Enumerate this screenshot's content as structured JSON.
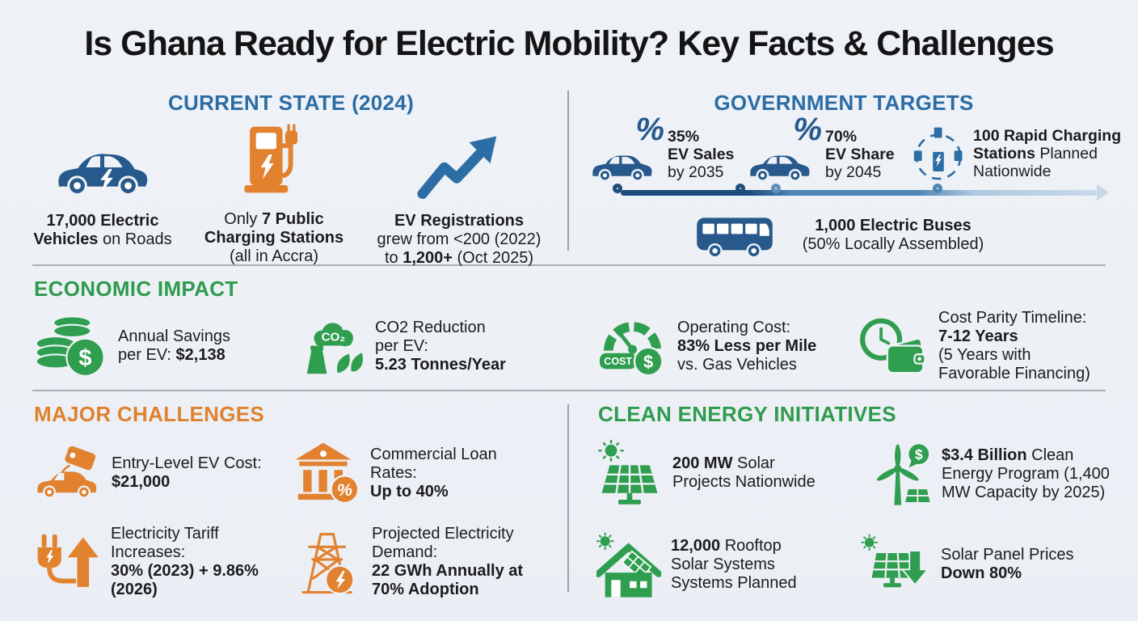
{
  "title": "Is Ghana Ready for Electric Mobility? Key Facts & Challenges",
  "colors": {
    "background": "#eef2f7",
    "heading_blue": "#2b6ca5",
    "heading_green": "#2f9b4d",
    "heading_orange": "#e0812f",
    "icon_navy": "#27598c",
    "icon_orange": "#e2812e",
    "icon_green": "#2f9e4f",
    "timeline_dark": "#1d4d7c",
    "timeline_mid": "#4e85b5",
    "timeline_light": "#c9d9ea",
    "text": "#1c1c1e",
    "divider": "#a9afb7"
  },
  "symbols": {
    "percent": "%",
    "dollar": "$",
    "co2": "CO₂",
    "cost": "COST"
  },
  "current_state": {
    "heading": "CURRENT STATE (2024)",
    "items": [
      {
        "icon": "ev-car-icon",
        "lines": [
          [
            {
              "t": "17,000 Electric",
              "b": true
            }
          ],
          [
            {
              "t": "Vehicles",
              "b": true
            },
            {
              "t": " on Roads",
              "b": false
            }
          ]
        ]
      },
      {
        "icon": "charging-station-icon",
        "lines": [
          [
            {
              "t": "Only ",
              "b": false
            },
            {
              "t": "7 Public",
              "b": true
            }
          ],
          [
            {
              "t": "Charging Stations",
              "b": true
            }
          ],
          [
            {
              "t": "(all in Accra)",
              "b": false
            }
          ]
        ]
      },
      {
        "icon": "growth-arrow-icon",
        "lines": [
          [
            {
              "t": "EV Registrations",
              "b": true
            }
          ],
          [
            {
              "t": "grew from <200 (2022)",
              "b": false
            }
          ],
          [
            {
              "t": "to ",
              "b": false
            },
            {
              "t": "1,200+",
              "b": true
            },
            {
              "t": " (Oct 2025)",
              "b": false
            }
          ]
        ]
      }
    ]
  },
  "government_targets": {
    "heading": "GOVERNMENT TARGETS",
    "items": [
      {
        "icon": "car-percent-icon",
        "lines": [
          [
            {
              "t": "35%",
              "b": true
            }
          ],
          [
            {
              "t": "EV Sales",
              "b": true
            }
          ],
          [
            {
              "t": "by 2035",
              "b": false
            }
          ]
        ]
      },
      {
        "icon": "car-percent-icon",
        "lines": [
          [
            {
              "t": "70%",
              "b": true
            }
          ],
          [
            {
              "t": "EV Share",
              "b": true
            }
          ],
          [
            {
              "t": "by 2045",
              "b": false
            }
          ]
        ]
      },
      {
        "icon": "charging-network-icon",
        "lines": [
          [
            {
              "t": "100 Rapid Charging",
              "b": true
            }
          ],
          [
            {
              "t": "Stations",
              "b": true
            },
            {
              "t": " Planned",
              "b": false
            }
          ],
          [
            {
              "t": "Nationwide",
              "b": false
            }
          ]
        ]
      }
    ],
    "timeline_nodes": 4,
    "bus": {
      "icon": "electric-bus-icon",
      "lines": [
        [
          {
            "t": "1,000 Electric Buses",
            "b": true
          }
        ],
        [
          {
            "t": "(50% Locally Assembled)",
            "b": false
          }
        ]
      ]
    }
  },
  "economic_impact": {
    "heading": "ECONOMIC IMPACT",
    "items": [
      {
        "icon": "coins-icon",
        "lines": [
          [
            {
              "t": "Annual Savings",
              "b": false
            }
          ],
          [
            {
              "t": "per EV: ",
              "b": false
            },
            {
              "t": "$2,138",
              "b": true
            }
          ]
        ]
      },
      {
        "icon": "co2-reduction-icon",
        "lines": [
          [
            {
              "t": "CO2 Reduction",
              "b": false
            }
          ],
          [
            {
              "t": "per EV:",
              "b": false
            }
          ],
          [
            {
              "t": "5.23 Tonnes/Year",
              "b": true
            }
          ]
        ]
      },
      {
        "icon": "cost-gauge-icon",
        "lines": [
          [
            {
              "t": "Operating Cost:",
              "b": false
            }
          ],
          [
            {
              "t": "83% Less per Mile",
              "b": true
            }
          ],
          [
            {
              "t": "vs. Gas Vehicles",
              "b": false
            }
          ]
        ]
      },
      {
        "icon": "clock-wallet-icon",
        "lines": [
          [
            {
              "t": "Cost Parity Timeline:",
              "b": false
            }
          ],
          [
            {
              "t": "7-12 Years",
              "b": true
            }
          ],
          [
            {
              "t": "(5 Years with",
              "b": false
            }
          ],
          [
            {
              "t": "Favorable Financing)",
              "b": false
            }
          ]
        ]
      }
    ]
  },
  "major_challenges": {
    "heading": "MAJOR CHALLENGES",
    "items": [
      {
        "icon": "car-price-tag-icon",
        "lines": [
          [
            {
              "t": "Entry-Level EV Cost:",
              "b": false
            }
          ],
          [
            {
              "t": "$21,000",
              "b": true
            }
          ]
        ]
      },
      {
        "icon": "bank-percent-icon",
        "lines": [
          [
            {
              "t": "Commercial Loan",
              "b": false
            }
          ],
          [
            {
              "t": "Rates:",
              "b": false
            }
          ],
          [
            {
              "t": "Up to 40%",
              "b": true
            }
          ]
        ]
      },
      {
        "icon": "plug-tariff-icon",
        "lines": [
          [
            {
              "t": "Electricity Tariff",
              "b": false
            }
          ],
          [
            {
              "t": "Increases:",
              "b": false
            }
          ],
          [
            {
              "t": "30% (2023) + 9.86%",
              "b": true
            }
          ],
          [
            {
              "t": "(2026)",
              "b": true
            }
          ]
        ]
      },
      {
        "icon": "power-tower-icon",
        "lines": [
          [
            {
              "t": "Projected Electricity",
              "b": false
            }
          ],
          [
            {
              "t": "Demand:",
              "b": false
            }
          ],
          [
            {
              "t": "22 GWh Annually at",
              "b": true
            }
          ],
          [
            {
              "t": "70% Adoption",
              "b": true
            }
          ]
        ]
      }
    ]
  },
  "clean_energy": {
    "heading": "CLEAN ENERGY INITIATIVES",
    "items": [
      {
        "icon": "solar-projects-icon",
        "lines": [
          [
            {
              "t": "200 MW",
              "b": true
            },
            {
              "t": " Solar",
              "b": false
            }
          ],
          [
            {
              "t": "Projects Nationwide",
              "b": false
            }
          ]
        ]
      },
      {
        "icon": "wind-dollar-icon",
        "lines": [
          [
            {
              "t": "$3.4 Billion",
              "b": true
            },
            {
              "t": " Clean",
              "b": false
            }
          ],
          [
            {
              "t": "Energy Program (1,400",
              "b": false
            }
          ],
          [
            {
              "t": "MW Capacity by 2025)",
              "b": false
            }
          ]
        ]
      },
      {
        "icon": "rooftop-solar-icon",
        "lines": [
          [
            {
              "t": "12,000",
              "b": true
            },
            {
              "t": " Rooftop",
              "b": false
            }
          ],
          [
            {
              "t": "Solar Systems",
              "b": false
            }
          ],
          [
            {
              "t": "Systems Planned",
              "b": false
            }
          ]
        ]
      },
      {
        "icon": "solar-price-down-icon",
        "lines": [
          [
            {
              "t": "Solar Panel Prices",
              "b": false
            }
          ],
          [
            {
              "t": "Down 80%",
              "b": true
            }
          ]
        ]
      }
    ]
  }
}
